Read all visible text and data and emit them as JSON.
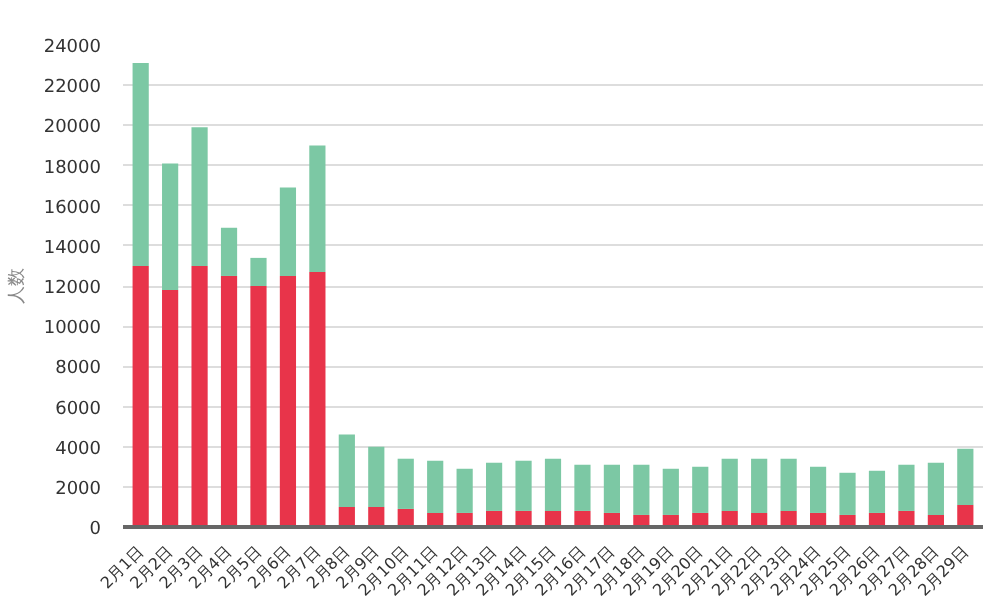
{
  "chart_data": {
    "type": "bar",
    "stacked": true,
    "ylabel": "人数",
    "categories": [
      "2月1日",
      "2月2日",
      "2月3日",
      "2月4日",
      "2月5日",
      "2月6日",
      "2月7日",
      "2月8日",
      "2月9日",
      "2月10日",
      "2月11日",
      "2月12日",
      "2月13日",
      "2月14日",
      "2月15日",
      "2月16日",
      "2月17日",
      "2月18日",
      "2月19日",
      "2月20日",
      "2月21日",
      "2月22日",
      "2月23日",
      "2月24日",
      "2月25日",
      "2月26日",
      "2月27日",
      "2月28日",
      "2月29日"
    ],
    "series": [
      {
        "color": "#e8344a",
        "values": [
          13000,
          11800,
          13000,
          12500,
          12000,
          12500,
          12700,
          1000,
          1000,
          900,
          700,
          700,
          800,
          800,
          800,
          800,
          700,
          600,
          600,
          700,
          800,
          700,
          800,
          700,
          600,
          700,
          800,
          600,
          1100
        ]
      },
      {
        "color": "#7cc8a4",
        "values": [
          10100,
          6300,
          6900,
          2400,
          1400,
          4400,
          6300,
          3600,
          3000,
          2500,
          2600,
          2200,
          2400,
          2500,
          2600,
          2300,
          2400,
          2500,
          2300,
          2300,
          2600,
          2700,
          2600,
          2300,
          2100,
          2100,
          2300,
          2600,
          2800
        ]
      }
    ],
    "ylim": [
      0,
      24000
    ],
    "yticks": [
      0,
      2000,
      4000,
      6000,
      8000,
      10000,
      12000,
      14000,
      16000,
      18000,
      20000,
      22000,
      24000
    ],
    "grid": "y"
  }
}
